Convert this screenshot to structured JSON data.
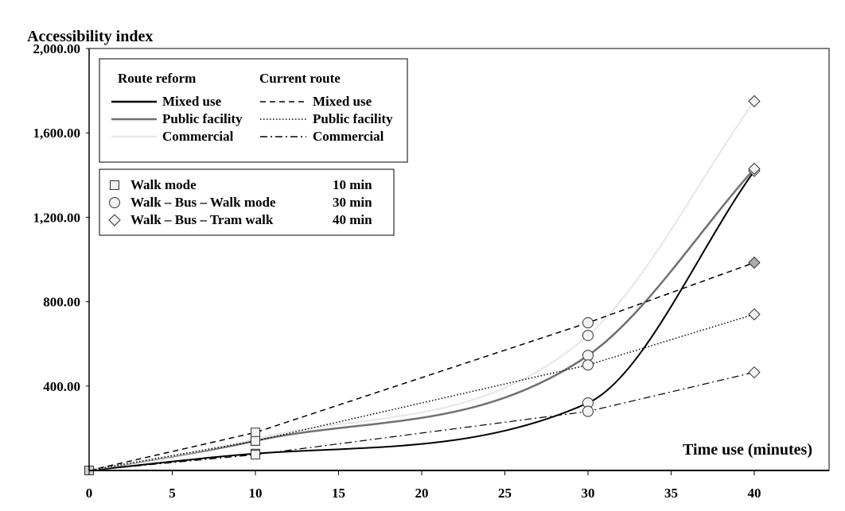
{
  "chart_data": {
    "type": "line",
    "ylabel": "Accessibility index",
    "xlabel": "Time use (minutes)",
    "xlim": [
      0,
      44.5
    ],
    "ylim": [
      0,
      2000
    ],
    "x_ticks": [
      "0",
      "5",
      "10",
      "15",
      "20",
      "25",
      "30",
      "35",
      "40"
    ],
    "y_ticks": [
      "2,000.00",
      "1,600.00",
      "1,200.00",
      "800.00",
      "400.00"
    ],
    "x": [
      0,
      10,
      30,
      40
    ],
    "legend_lines": {
      "col1_header": "Route reform",
      "col2_header": "Current route",
      "items": [
        {
          "route": "reform",
          "label": "Mixed use",
          "style": "solid",
          "color": "#000000"
        },
        {
          "route": "reform",
          "label": "Public facility",
          "style": "solid",
          "color": "#707070"
        },
        {
          "route": "reform",
          "label": "Commercial",
          "style": "solid",
          "color": "#e6e6e6"
        },
        {
          "route": "current",
          "label": "Mixed use",
          "style": "dashed",
          "color": "#000000"
        },
        {
          "route": "current",
          "label": "Public facility",
          "style": "dotted",
          "color": "#000000"
        },
        {
          "route": "current",
          "label": "Commercial",
          "style": "dashdot",
          "color": "#000000"
        }
      ]
    },
    "legend_markers": [
      {
        "marker": "square",
        "label": "Walk mode",
        "time": "10 min"
      },
      {
        "marker": "circle",
        "label": "Walk – Bus – Walk mode",
        "time": "30 min"
      },
      {
        "marker": "diamond",
        "label": "Walk – Bus – Tram  walk",
        "time": "40 min"
      }
    ],
    "series": [
      {
        "name": "Route reform – Mixed use",
        "group": "reform",
        "color": "#000000",
        "style": "solid",
        "width": 2,
        "values": [
          0,
          80,
          320,
          1420
        ]
      },
      {
        "name": "Route reform – Public facility",
        "group": "reform",
        "color": "#707070",
        "style": "solid",
        "width": 2.5,
        "values": [
          0,
          140,
          545,
          1430
        ]
      },
      {
        "name": "Route reform – Commercial",
        "group": "reform",
        "color": "#e6e6e6",
        "style": "solid",
        "width": 2,
        "values": [
          0,
          150,
          640,
          1750
        ]
      },
      {
        "name": "Current route – Mixed use",
        "group": "current",
        "color": "#000000",
        "style": "dashed",
        "width": 1.5,
        "values": [
          0,
          180,
          700,
          985
        ]
      },
      {
        "name": "Current route – Public facility",
        "group": "current",
        "color": "#000000",
        "style": "dotted",
        "width": 1.5,
        "values": [
          0,
          140,
          500,
          740
        ]
      },
      {
        "name": "Current route – Commercial",
        "group": "current",
        "color": "#000000",
        "style": "dashdot",
        "width": 1.2,
        "values": [
          0,
          75,
          280,
          465
        ]
      }
    ],
    "grid": false,
    "legend_position": "top-left"
  }
}
